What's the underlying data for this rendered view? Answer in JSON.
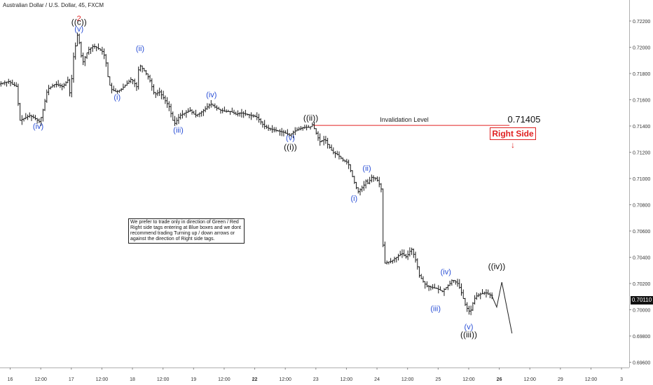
{
  "header": {
    "symbol": "Australian Dollar / U.S. Dollar, 45, FXCM"
  },
  "note": {
    "lines": [
      "We prefer to trade only in direction of Green / Red",
      "Right side tags entering at Blue boxes and we dont",
      "recommend trading Turning up / down arrows or",
      "against the direction of Right side tags."
    ]
  },
  "invalidation": {
    "label": "Invalidation Level",
    "value": "0.71405"
  },
  "right_side": {
    "label": "Right Side",
    "arrow": "↓"
  },
  "last_price": "0.70110",
  "colors": {
    "candle": "#1a1a1a",
    "blue_label": "#2a4fd6",
    "black_label": "#111111",
    "red": "#e02020",
    "axis_text": "#333333"
  },
  "chart_data": {
    "type": "candlestick",
    "title": "Australian Dollar / U.S. Dollar, 45, FXCM",
    "y_ticks": [
      "0.72200",
      "0.72000",
      "0.71800",
      "0.71600",
      "0.71400",
      "0.71200",
      "0.71000",
      "0.70800",
      "0.70600",
      "0.70400",
      "0.70200",
      "0.70000",
      "0.69800",
      "0.69600"
    ],
    "y_tick_values": [
      0.722,
      0.72,
      0.718,
      0.716,
      0.714,
      0.712,
      0.71,
      0.708,
      0.706,
      0.704,
      0.702,
      0.7,
      0.698,
      0.696
    ],
    "ylim": [
      0.6956,
      0.7236
    ],
    "x_ticks": [
      "16",
      "12:00",
      "17",
      "12:00",
      "18",
      "12:00",
      "19",
      "12:00",
      "22",
      "12:00",
      "23",
      "12:00",
      "24",
      "12:00",
      "25",
      "12:00",
      "26",
      "12:00",
      "29",
      "12:00",
      "3"
    ],
    "x_tick_times": [
      0,
      12,
      24,
      36,
      48,
      60,
      72,
      84,
      96,
      108,
      120,
      132,
      144,
      156,
      168,
      180,
      192,
      204,
      216,
      228,
      240
    ],
    "bold_ticks": [
      "22",
      "26"
    ],
    "xlim": [
      -4,
      243
    ],
    "price_path": [
      [
        -4,
        0.7172
      ],
      [
        0,
        0.7174
      ],
      [
        1,
        0.7172
      ],
      [
        3,
        0.717
      ],
      [
        4,
        0.7144
      ],
      [
        6,
        0.7146
      ],
      [
        8,
        0.7148
      ],
      [
        10,
        0.7146
      ],
      [
        12,
        0.7143
      ],
      [
        13,
        0.715
      ],
      [
        15,
        0.7168
      ],
      [
        18,
        0.7172
      ],
      [
        21,
        0.717
      ],
      [
        23,
        0.7175
      ],
      [
        24,
        0.7162
      ],
      [
        25,
        0.719
      ],
      [
        27,
        0.7212
      ],
      [
        28,
        0.7195
      ],
      [
        29,
        0.7189
      ],
      [
        31,
        0.7198
      ],
      [
        33,
        0.7201
      ],
      [
        35,
        0.7199
      ],
      [
        37,
        0.7196
      ],
      [
        38,
        0.7188
      ],
      [
        39,
        0.7174
      ],
      [
        40,
        0.7168
      ],
      [
        42,
        0.7166
      ],
      [
        44,
        0.7168
      ],
      [
        46,
        0.7172
      ],
      [
        48,
        0.7176
      ],
      [
        50,
        0.717
      ],
      [
        51,
        0.7187
      ],
      [
        53,
        0.7182
      ],
      [
        55,
        0.7176
      ],
      [
        56,
        0.717
      ],
      [
        57,
        0.7164
      ],
      [
        59,
        0.7166
      ],
      [
        61,
        0.716
      ],
      [
        63,
        0.7154
      ],
      [
        64,
        0.7145
      ],
      [
        65,
        0.7142
      ],
      [
        67,
        0.7148
      ],
      [
        69,
        0.715
      ],
      [
        71,
        0.7152
      ],
      [
        73,
        0.7148
      ],
      [
        75,
        0.715
      ],
      [
        77,
        0.7153
      ],
      [
        79,
        0.7157
      ],
      [
        81,
        0.7154
      ],
      [
        83,
        0.7152
      ],
      [
        85,
        0.7151
      ],
      [
        87,
        0.7151
      ],
      [
        89,
        0.7149
      ],
      [
        91,
        0.715
      ],
      [
        93,
        0.7149
      ],
      [
        95,
        0.7148
      ],
      [
        97,
        0.7147
      ],
      [
        98,
        0.7145
      ],
      [
        100,
        0.714
      ],
      [
        102,
        0.7138
      ],
      [
        104,
        0.7137
      ],
      [
        106,
        0.7136
      ],
      [
        108,
        0.7135
      ],
      [
        110,
        0.7133
      ],
      [
        112,
        0.7136
      ],
      [
        114,
        0.7138
      ],
      [
        116,
        0.7139
      ],
      [
        118,
        0.7139
      ],
      [
        119,
        0.7141
      ],
      [
        120,
        0.7137
      ],
      [
        121,
        0.7132
      ],
      [
        122,
        0.7128
      ],
      [
        124,
        0.713
      ],
      [
        125,
        0.7126
      ],
      [
        127,
        0.712
      ],
      [
        129,
        0.7118
      ],
      [
        131,
        0.7114
      ],
      [
        133,
        0.7112
      ],
      [
        134,
        0.7106
      ],
      [
        135,
        0.71
      ],
      [
        136,
        0.7094
      ],
      [
        137,
        0.709
      ],
      [
        139,
        0.7094
      ],
      [
        140,
        0.7098
      ],
      [
        141,
        0.7096
      ],
      [
        142,
        0.7101
      ],
      [
        144,
        0.71
      ],
      [
        145,
        0.7097
      ],
      [
        146,
        0.7092
      ],
      [
        147,
        0.7035
      ],
      [
        148,
        0.7036
      ],
      [
        150,
        0.7037
      ],
      [
        152,
        0.704
      ],
      [
        154,
        0.7043
      ],
      [
        156,
        0.704
      ],
      [
        157,
        0.7044
      ],
      [
        158,
        0.7046
      ],
      [
        159,
        0.7041
      ],
      [
        160,
        0.7035
      ],
      [
        161,
        0.7026
      ],
      [
        163,
        0.702
      ],
      [
        164,
        0.7018
      ],
      [
        166,
        0.7017
      ],
      [
        168,
        0.7016
      ],
      [
        170,
        0.7014
      ],
      [
        172,
        0.7018
      ],
      [
        173,
        0.702
      ],
      [
        174,
        0.7023
      ],
      [
        176,
        0.702
      ],
      [
        177,
        0.7016
      ],
      [
        178,
        0.701
      ],
      [
        179,
        0.7004
      ],
      [
        180,
        0.7
      ],
      [
        181,
        0.6998
      ],
      [
        182,
        0.7005
      ],
      [
        183,
        0.701
      ],
      [
        185,
        0.7012
      ],
      [
        187,
        0.7013
      ],
      [
        189,
        0.7011
      ]
    ],
    "projection": [
      [
        189,
        0.7011
      ],
      [
        191,
        0.7002
      ],
      [
        193,
        0.7021
      ],
      [
        197,
        0.6982
      ]
    ],
    "invalidation_level": 0.71405,
    "invalidation_span": [
      119,
      196
    ],
    "wave_labels": [
      {
        "text": "2",
        "t": 27,
        "p": 0.722,
        "color": "red"
      },
      {
        "text": "((c))",
        "t": 27,
        "p": 0.7217,
        "color": "black"
      },
      {
        "text": "(v)",
        "t": 27,
        "p": 0.7212,
        "color": "blue"
      },
      {
        "text": "(iv)",
        "t": 11,
        "p": 0.7138,
        "color": "blue"
      },
      {
        "text": "(i)",
        "t": 42,
        "p": 0.716,
        "color": "blue"
      },
      {
        "text": "(ii)",
        "t": 51,
        "p": 0.7197,
        "color": "blue"
      },
      {
        "text": "(iii)",
        "t": 66,
        "p": 0.7135,
        "color": "blue"
      },
      {
        "text": "(iv)",
        "t": 79,
        "p": 0.7162,
        "color": "blue"
      },
      {
        "text": "((ii))",
        "t": 118,
        "p": 0.7144,
        "color": "black"
      },
      {
        "text": "(v)",
        "t": 110,
        "p": 0.7129,
        "color": "blue"
      },
      {
        "text": "((i))",
        "t": 110,
        "p": 0.7122,
        "color": "black"
      },
      {
        "text": "(ii)",
        "t": 140,
        "p": 0.7106,
        "color": "blue"
      },
      {
        "text": "(i)",
        "t": 135,
        "p": 0.7083,
        "color": "blue"
      },
      {
        "text": "(iv)",
        "t": 171,
        "p": 0.7027,
        "color": "blue"
      },
      {
        "text": "(iii)",
        "t": 167,
        "p": 0.6999,
        "color": "blue"
      },
      {
        "text": "(v)",
        "t": 180,
        "p": 0.6985,
        "color": "blue"
      },
      {
        "text": "((iii))",
        "t": 180,
        "p": 0.6979,
        "color": "black"
      },
      {
        "text": "((iv))",
        "t": 191,
        "p": 0.7031,
        "color": "black"
      }
    ]
  }
}
